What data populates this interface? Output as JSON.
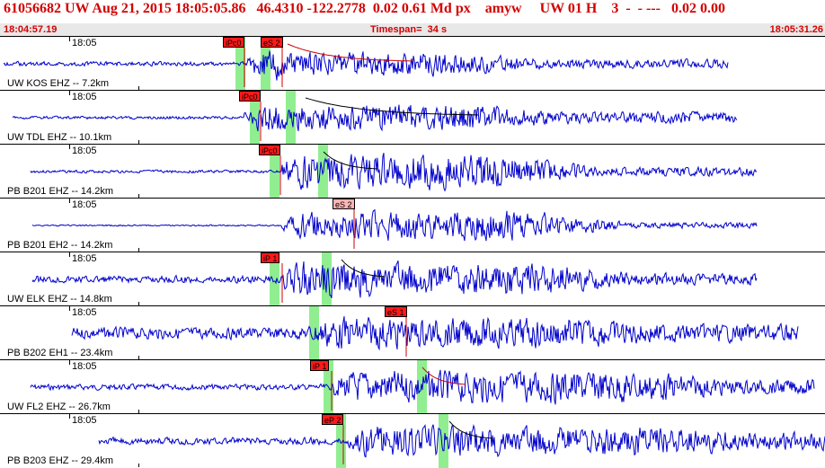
{
  "header": {
    "title": "61056682 UW Aug 21, 2015 18:05:05.86   46.4310 -122.2778  0.02 0.61 Md px    amyw     UW 01 H    3  -  - ---   0.02 0.00",
    "start_time": "18:04:57.19",
    "timespan": "Timespan=  34 s",
    "end_time": "18:05:31.26"
  },
  "colors": {
    "waveform": "#0000cc",
    "pick_line": "#cc0000",
    "window": "#90ee90",
    "decay": "#cc0000",
    "decay_black": "#000000"
  },
  "traces": [
    {
      "label": "UW KOS EHZ -- 7.2km",
      "tick": "18:05",
      "picks": [
        {
          "text": "iPc0",
          "style": "red",
          "x": 248
        },
        {
          "text": "eS 2",
          "style": "red",
          "x": 290
        }
      ],
      "windows": [
        262,
        290
      ],
      "start": 4,
      "end": 810,
      "p": 272,
      "s": 316,
      "amp": [
        3,
        10,
        22,
        16,
        6
      ],
      "decay": {
        "from": 320,
        "to": 460,
        "color": "red"
      },
      "seed": 1
    },
    {
      "label": "UW TDL EHZ -- 10.1km",
      "tick": "18:05",
      "picks": [
        {
          "text": "iPc0",
          "style": "red",
          "x": 266
        }
      ],
      "windows": [
        278,
        318
      ],
      "start": 14,
      "end": 820,
      "p": 272,
      "s": 330,
      "amp": [
        2,
        8,
        20,
        18,
        8
      ],
      "decay": {
        "from": 340,
        "to": 535,
        "color": "black"
      },
      "seed": 2
    },
    {
      "label": "PB B201 EHZ -- 14.2km",
      "tick": "18:05",
      "picks": [
        {
          "text": "iPc0",
          "style": "red",
          "x": 288
        }
      ],
      "windows": [
        300,
        354
      ],
      "start": 34,
      "end": 842,
      "p": 314,
      "s": 370,
      "amp": [
        2,
        14,
        24,
        24,
        6
      ],
      "decay": {
        "from": 360,
        "to": 420,
        "color": "black"
      },
      "seed": 3
    },
    {
      "label": "PB B201 EH2 -- 14.2km",
      "tick": "18:05",
      "picks": [
        {
          "text": "eS 2",
          "style": "pink",
          "x": 370
        }
      ],
      "windows": [],
      "start": 36,
      "end": 842,
      "p": 314,
      "s": 400,
      "amp": [
        1,
        6,
        18,
        20,
        4
      ],
      "decay": {
        "from": 0,
        "to": 0,
        "color": "black"
      },
      "seed": 4
    },
    {
      "label": "UW ELK EHZ -- 14.8km",
      "tick": "18:05",
      "picks": [
        {
          "text": "iP 1",
          "style": "red",
          "x": 290
        }
      ],
      "windows": [
        300,
        358
      ],
      "start": 36,
      "end": 842,
      "p": 316,
      "s": 416,
      "amp": [
        5,
        14,
        24,
        22,
        8
      ],
      "decay": {
        "from": 380,
        "to": 430,
        "color": "black"
      },
      "seed": 5
    },
    {
      "label": "PB B202 EH1 -- 23.4km",
      "tick": "18:05",
      "picks": [
        {
          "text": "eS 1",
          "style": "red",
          "x": 428
        }
      ],
      "windows": [
        344
      ],
      "start": 80,
      "end": 888,
      "p": 344,
      "s": 454,
      "amp": [
        8,
        12,
        22,
        20,
        12
      ],
      "decay": {
        "from": 0,
        "to": 0,
        "color": "black"
      },
      "seed": 6
    },
    {
      "label": "UW FL2 EHZ -- 26.7km",
      "tick": "18:05",
      "picks": [
        {
          "text": "iP 1",
          "style": "red",
          "x": 345
        }
      ],
      "windows": [
        360,
        464
      ],
      "start": 34,
      "end": 906,
      "p": 372,
      "s": 522,
      "amp": [
        4,
        12,
        22,
        22,
        10
      ],
      "decay": {
        "from": 470,
        "to": 520,
        "color": "red"
      },
      "seed": 7
    },
    {
      "label": "PB B203 EHZ -- 29.4km",
      "tick": "18:05",
      "picks": [
        {
          "text": "eP 2",
          "style": "red",
          "x": 358
        }
      ],
      "windows": [
        374,
        488
      ],
      "start": 110,
      "end": 918,
      "p": 384,
      "s": 545,
      "amp": [
        5,
        10,
        20,
        20,
        12
      ],
      "decay": {
        "from": 500,
        "to": 550,
        "color": "black"
      },
      "seed": 8
    }
  ]
}
